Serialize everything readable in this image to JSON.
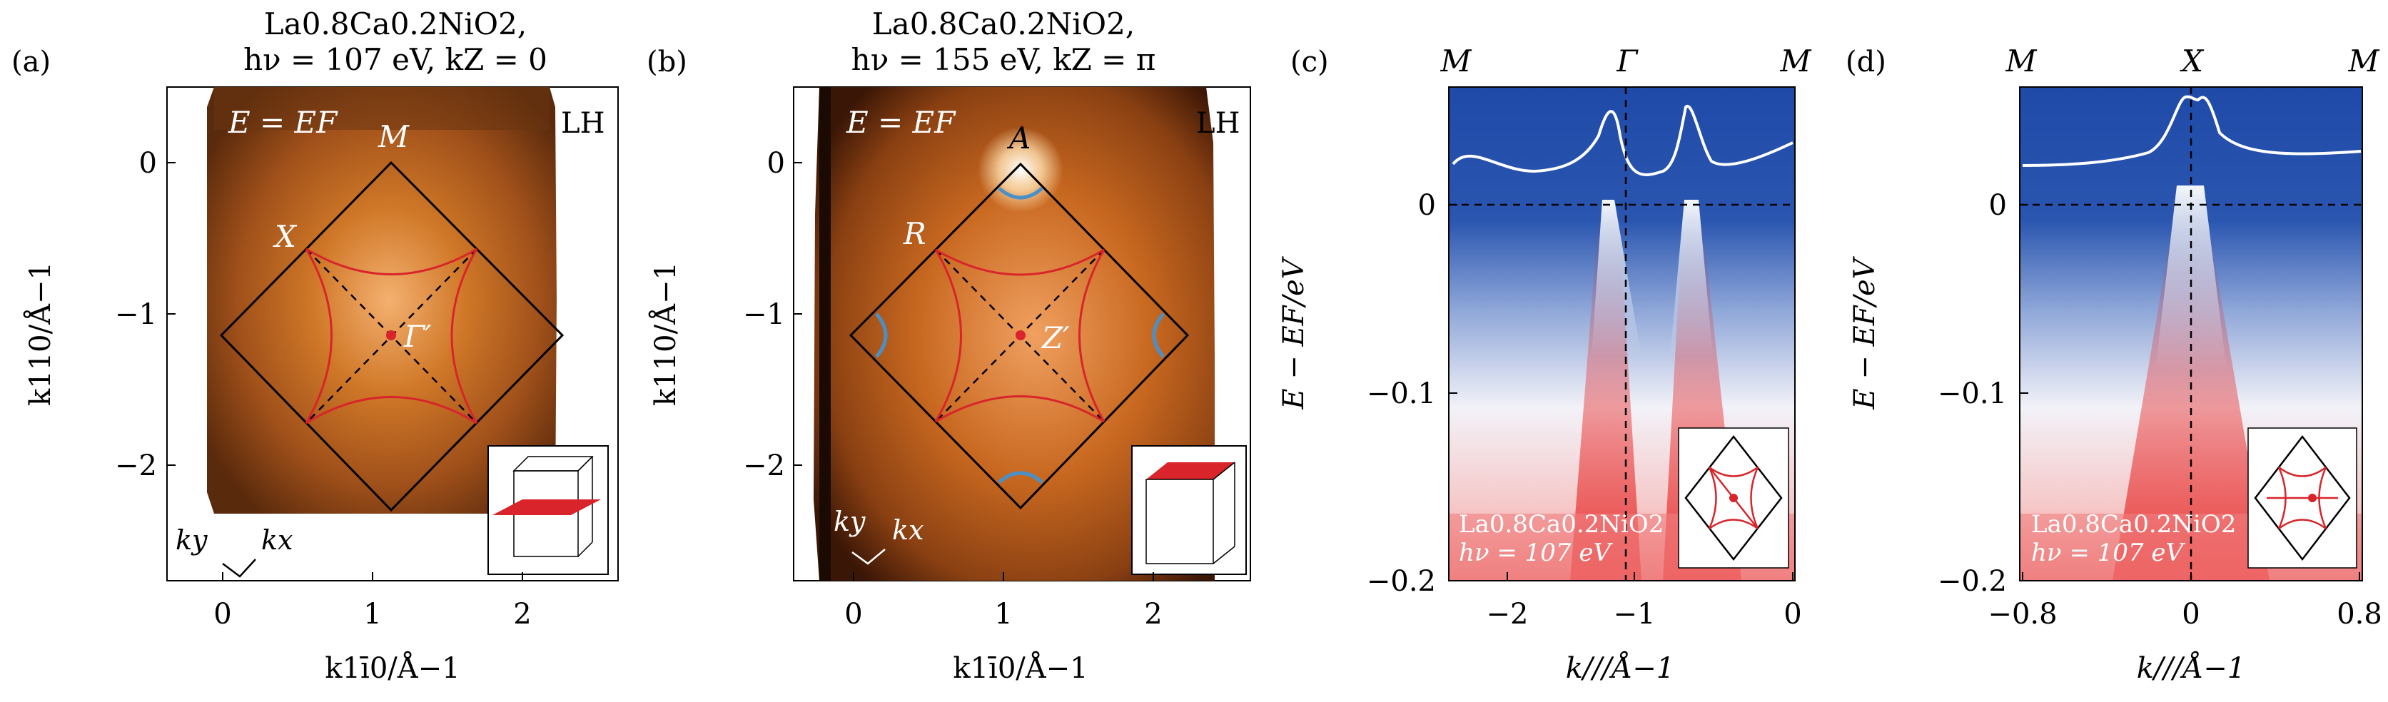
{
  "panels": {
    "a": {
      "label": "(a)",
      "title_line1": "La0.8Ca0.2NiO2,",
      "title_line2": "hν = 107 eV, kZ = 0",
      "energy_label": "E = EF",
      "polarization": "LH",
      "points": {
        "M": "M",
        "X": "X",
        "Gamma": "Γ′"
      },
      "xlabel": "k1ī0/Å−1",
      "ylabel": "k110/Å−1",
      "xticks": [
        "0",
        "1",
        "2"
      ],
      "yticks": [
        "0",
        "−1",
        "−2"
      ],
      "axes_labels": {
        "ky": "ky",
        "kx": "kx"
      }
    },
    "b": {
      "label": "(b)",
      "title_line1": "La0.8Ca0.2NiO2,",
      "title_line2": "hν = 155 eV, kZ = π",
      "energy_label": "E = EF",
      "polarization": "LH",
      "points": {
        "A": "A",
        "R": "R",
        "Z": "Z′"
      },
      "xlabel": "k1ī0/Å−1",
      "ylabel": "k110/Å−1",
      "xticks": [
        "0",
        "1",
        "2"
      ],
      "yticks": [
        "0",
        "−1",
        "−2"
      ],
      "axes_labels": {
        "ky": "ky",
        "kx": "kx"
      }
    },
    "c": {
      "label": "(c)",
      "top_labels": [
        "M",
        "Γ",
        "M"
      ],
      "xlabel": "k///Å−1",
      "ylabel": "E − EF/eV",
      "xticks": [
        "−2",
        "−1",
        "0"
      ],
      "yticks": [
        "0",
        "−0.1",
        "−0.2"
      ],
      "sample": "La0.8Ca0.2NiO2",
      "photon": "hν = 107 eV"
    },
    "d": {
      "label": "(d)",
      "top_labels": [
        "M",
        "X",
        "M"
      ],
      "xlabel": "k///Å−1",
      "ylabel": "E − EF/eV",
      "xticks": [
        "−0.8",
        "0",
        "0.8"
      ],
      "yticks": [
        "0",
        "−0.1",
        "−0.2"
      ],
      "sample": "La0.8Ca0.2NiO2",
      "photon": "hν = 107 eV"
    }
  },
  "colors": {
    "fermi_map_dark": "#3a1606",
    "fermi_map_orange": "#c8661e",
    "fermi_map_bright": "#f6b878",
    "fs_red": "#d8242a",
    "fs_blue": "#4a90c8",
    "arpes_blue": "#1f4aa8",
    "arpes_red": "#e83030"
  }
}
